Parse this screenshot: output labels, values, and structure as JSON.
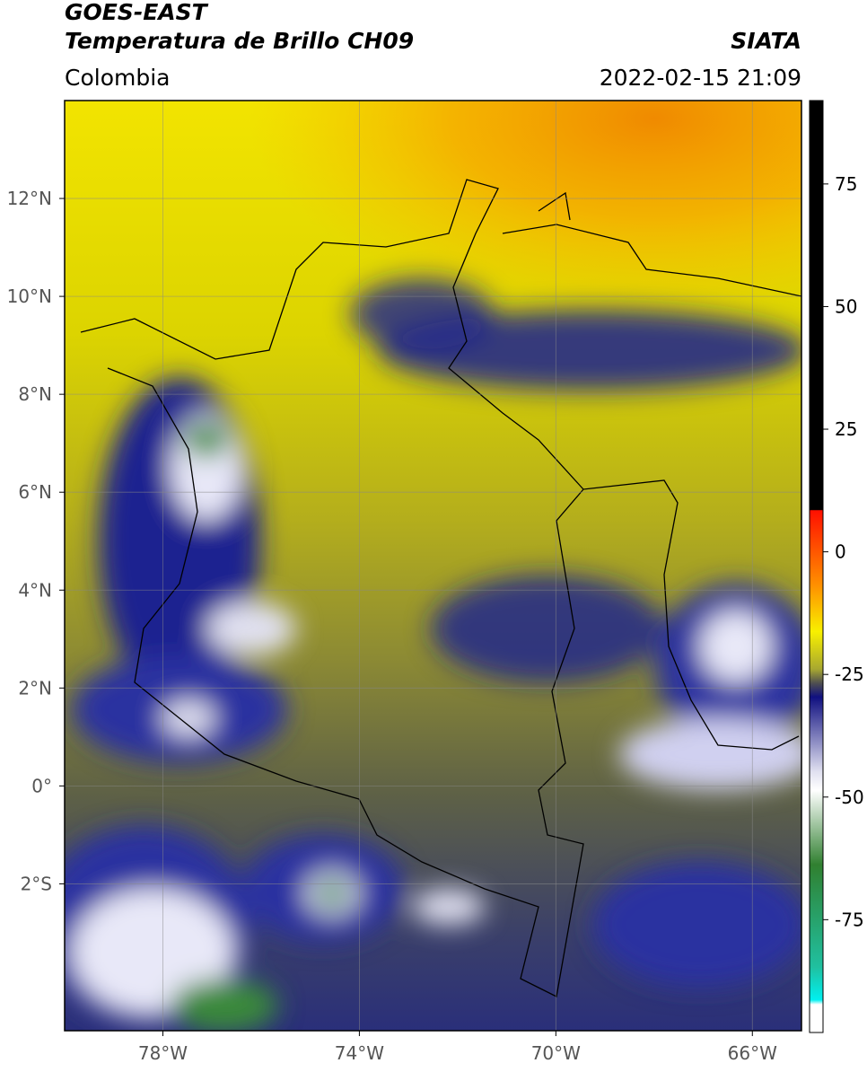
{
  "header": {
    "title": "GOES-EAST",
    "subtitle": "Temperatura de Brillo CH09",
    "source": "SIATA",
    "region": "Colombia",
    "timestamp": "2022-02-15 21:09"
  },
  "map": {
    "xlim": [
      -80,
      -65
    ],
    "ylim": [
      -5,
      14
    ],
    "xticks": [
      {
        "value": -78,
        "label": "78°W"
      },
      {
        "value": -74,
        "label": "74°W"
      },
      {
        "value": -70,
        "label": "70°W"
      },
      {
        "value": -66,
        "label": "66°W"
      }
    ],
    "yticks": [
      {
        "value": 12,
        "label": "12°N"
      },
      {
        "value": 10,
        "label": "10°N"
      },
      {
        "value": 8,
        "label": "8°N"
      },
      {
        "value": 6,
        "label": "6°N"
      },
      {
        "value": 4,
        "label": "4°N"
      },
      {
        "value": 2,
        "label": "2°N"
      },
      {
        "value": 0,
        "label": "0°"
      },
      {
        "value": -2,
        "label": "2°S"
      }
    ],
    "grid": true
  },
  "colorbar": {
    "lim": [
      -98,
      92
    ],
    "ticks": [
      75,
      50,
      25,
      0,
      -25,
      -50,
      -75
    ]
  }
}
